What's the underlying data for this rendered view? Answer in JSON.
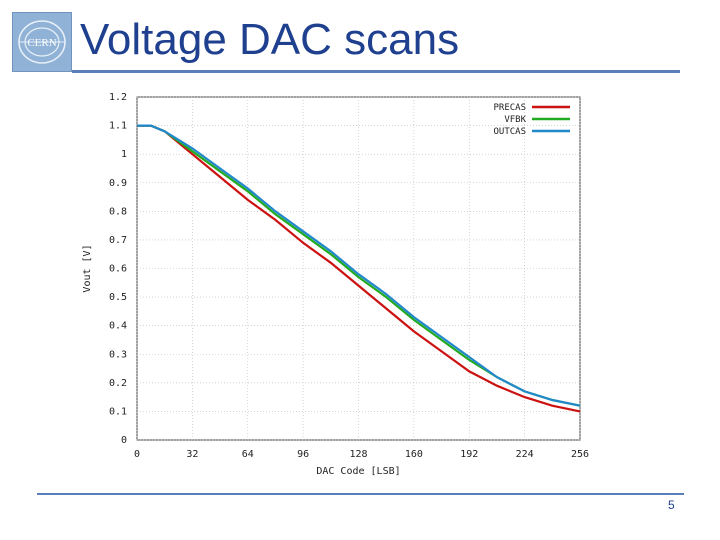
{
  "slide": {
    "title": "Voltage DAC scans",
    "page_number": "5",
    "logo_text": "CERN"
  },
  "colors": {
    "title": "#1f3f8f",
    "rule": "#5b7fb8"
  },
  "chart_data": {
    "type": "line",
    "title": "",
    "xlabel": "DAC Code [LSB]",
    "ylabel": "Vout [V]",
    "xlim": [
      0,
      256
    ],
    "ylim": [
      0,
      1.2
    ],
    "xticks": [
      0,
      32,
      64,
      96,
      128,
      160,
      192,
      224,
      256
    ],
    "xtick_labels": [
      "0",
      "32",
      "64",
      "96",
      "128",
      "160",
      "192",
      "224",
      "256"
    ],
    "yticks": [
      0,
      0.1,
      0.2,
      0.3,
      0.4,
      0.5,
      0.6,
      0.7,
      0.8,
      0.9,
      1,
      1.1,
      1.2
    ],
    "ytick_labels": [
      "0",
      "0.1",
      "0.2",
      "0.3",
      "0.4",
      "0.5",
      "0.6",
      "0.7",
      "0.8",
      "0.9",
      "1",
      "1.1",
      "1.2"
    ],
    "grid": true,
    "legend_position": "top-right",
    "x": [
      0,
      8,
      16,
      32,
      48,
      64,
      80,
      96,
      112,
      128,
      144,
      160,
      176,
      192,
      208,
      224,
      240,
      256
    ],
    "series": [
      {
        "name": "PRECAS",
        "color": "#cc1111",
        "values": [
          1.1,
          1.1,
          1.08,
          1.0,
          0.92,
          0.84,
          0.77,
          0.69,
          0.62,
          0.54,
          0.46,
          0.38,
          0.31,
          0.24,
          0.19,
          0.15,
          0.12,
          0.1
        ]
      },
      {
        "name": "VFBK",
        "color": "#22aa22",
        "values": [
          1.1,
          1.1,
          1.08,
          1.01,
          0.94,
          0.87,
          0.79,
          0.72,
          0.65,
          0.57,
          0.5,
          0.42,
          0.35,
          0.28,
          0.22,
          0.17,
          0.14,
          0.12
        ]
      },
      {
        "name": "OUTCAS",
        "color": "#2288cc",
        "values": [
          1.1,
          1.1,
          1.08,
          1.02,
          0.95,
          0.88,
          0.8,
          0.73,
          0.66,
          0.58,
          0.51,
          0.43,
          0.36,
          0.29,
          0.22,
          0.17,
          0.14,
          0.12
        ]
      }
    ]
  }
}
